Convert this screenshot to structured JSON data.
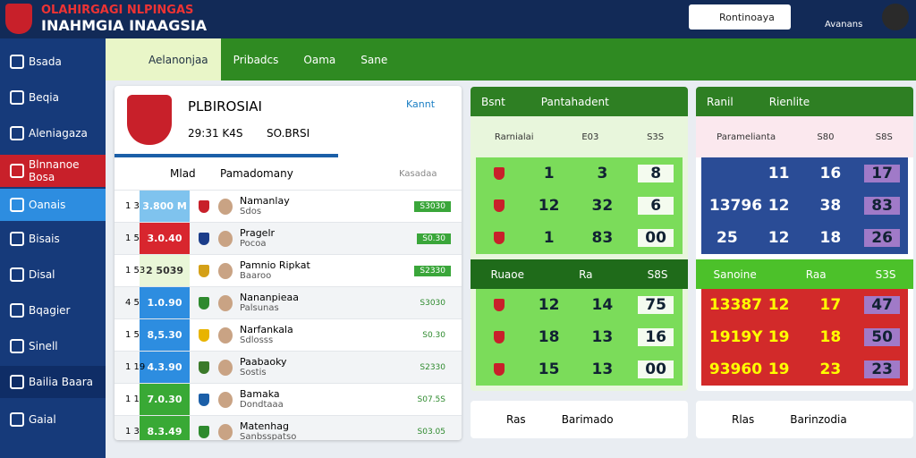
{
  "header": {
    "brand_line1": "OLAHIRGAGI NLPINGAS",
    "brand_line2": "INAHMGIA INAAGSIA",
    "search_name": "Rontinoaya",
    "user": "Avanans"
  },
  "sidebar": [
    "Bsada",
    "Beqia",
    "Aleniagaza",
    "Blnnanoe Bosa",
    "Oanais",
    "Bisais",
    "Disal",
    "Bqagier",
    "Sinell",
    "Bailia Baara",
    "Gaial"
  ],
  "tabs": [
    "Aelanonjaa",
    "Pribadcs",
    "Oama",
    "Sane"
  ],
  "panel": {
    "title": "PLBIROSIAI",
    "time": "29:31 K4S",
    "score": "SO.BRSI",
    "link": "Kannt",
    "columns": [
      "Mlad",
      "Pamadomany",
      "Kasadaa"
    ],
    "rows": [
      {
        "num": "1 3",
        "score": "3.800 M",
        "name": "Namanlay",
        "sub": "Sdos",
        "badge": "S3030"
      },
      {
        "num": "1 5",
        "score": "3.0.40",
        "name": "Pragelr",
        "sub": "Pocoa",
        "badge": "S0.30"
      },
      {
        "num": "1 53",
        "score": "2 5039",
        "name": "Pamnio Ripkat",
        "sub": "Baaroo",
        "badge": "S2330"
      },
      {
        "num": "4 5",
        "score": "1.0.90",
        "name": "Nananpieaa",
        "sub": "Palsunas",
        "badge": "S3030"
      },
      {
        "num": "1 5",
        "score": "8,5.30",
        "name": "Narfankala",
        "sub": "Sdlosss",
        "badge": "S0.30"
      },
      {
        "num": "1 19",
        "score": "4.3.90",
        "name": "Paabaoky",
        "sub": "Sostis",
        "badge": "S2330"
      },
      {
        "num": "1 1",
        "score": "7.0.30",
        "name": "Bamaka",
        "sub": "Dondtaaa",
        "badge": "S07.5S"
      },
      {
        "num": "1 3",
        "score": "8.3.49",
        "name": "Matenhag",
        "sub": "Sanbsspatso",
        "badge": "S03.05"
      }
    ]
  },
  "cards": [
    {
      "title": "Bsnt",
      "title2": "Pantahadent",
      "sub": [
        "Rarnialai",
        "E03",
        "S3S"
      ],
      "rows": [
        [
          "1",
          "3",
          "8"
        ],
        [
          "12",
          "32",
          "6"
        ],
        [
          "1",
          "83",
          "00"
        ]
      ],
      "sub2": [
        "Ruaoe",
        "Ra",
        "S8S"
      ],
      "rows2": [
        [
          "12",
          "14",
          "75"
        ],
        [
          "18",
          "13",
          "16"
        ],
        [
          "15",
          "13",
          "00"
        ]
      ]
    },
    {
      "title": "Ranil",
      "title2": "Rienlite",
      "sub": [
        "Paramelianta",
        "S80",
        "S8S"
      ],
      "rows": [
        [
          "",
          "11",
          "16",
          "17"
        ],
        [
          "13796",
          "12",
          "38",
          "83"
        ],
        [
          "25",
          "12",
          "18",
          "26"
        ]
      ],
      "sub2": [
        "Sanoine",
        "Raa",
        "S3S"
      ],
      "rows2": [
        [
          "13387",
          "12",
          "17",
          "47"
        ],
        [
          "1919Y",
          "19",
          "18",
          "50"
        ],
        [
          "93960",
          "19",
          "23",
          "23"
        ]
      ]
    }
  ],
  "bottom": [
    [
      "Ras",
      "Barimado"
    ],
    [
      "Rlas",
      "Barinzodia"
    ]
  ]
}
